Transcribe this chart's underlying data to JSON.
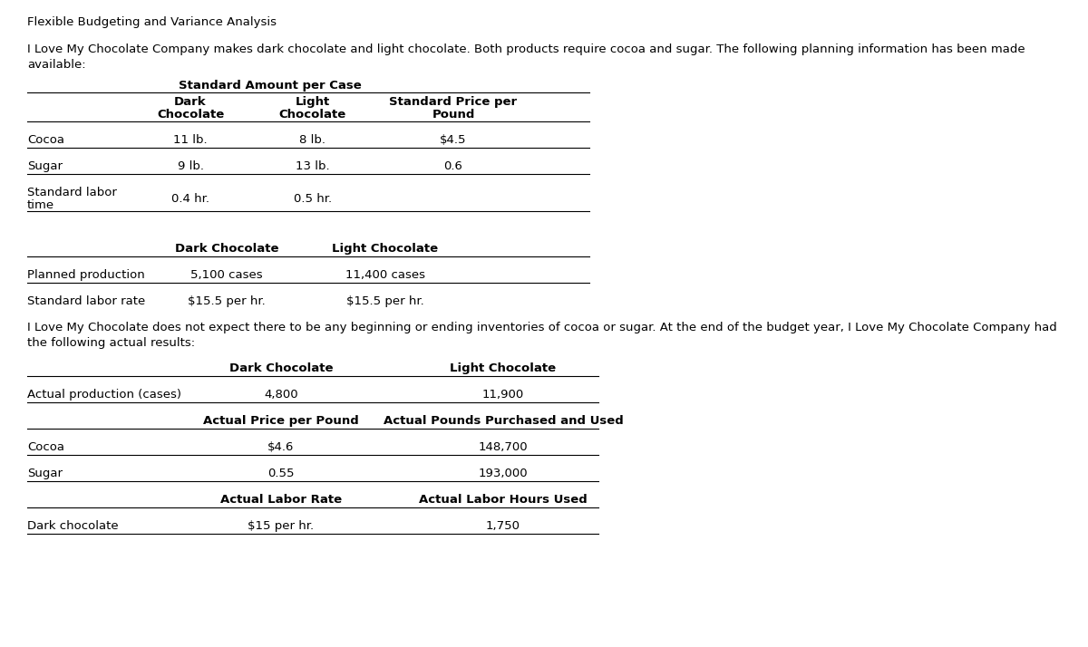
{
  "title": "Flexible Budgeting and Variance Analysis",
  "intro_line1": "I Love My Chocolate Company makes dark chocolate and light chocolate. Both products require cocoa and sugar. The following planning information has been made",
  "intro_line2": "available:",
  "table1_header": "Standard Amount per Case",
  "table2_col1": "Dark",
  "table2_col1b": "Chocolate",
  "table2_col2": "Light",
  "table2_col2b": "Chocolate",
  "table2_col3": "Standard Price per",
  "table2_col3b": "Pound",
  "row_cocoa": [
    "Cocoa",
    "11 lb.",
    "8 lb.",
    "$4.5"
  ],
  "row_sugar": [
    "Sugar",
    "9 lb.",
    "13 lb.",
    "0.6"
  ],
  "row_labor_line1": "Standard labor",
  "row_labor_line2": "time",
  "row_labor_val1": "0.4 hr.",
  "row_labor_val2": "0.5 hr.",
  "t2_hdr1": "Dark Chocolate",
  "t2_hdr2": "Light Chocolate",
  "t2_row1": [
    "Planned production",
    "5,100 cases",
    "11,400 cases"
  ],
  "t2_row2": [
    "Standard labor rate",
    "$15.5 per hr.",
    "$15.5 per hr."
  ],
  "mid_line1": "I Love My Chocolate does not expect there to be any beginning or ending inventories of cocoa or sugar. At the end of the budget year, I Love My Chocolate Company had",
  "mid_line2": "the following actual results:",
  "t3_hdr1": "Dark Chocolate",
  "t3_hdr2": "Light Chocolate",
  "t3_row1": [
    "Actual production (cases)",
    "4,800",
    "11,900"
  ],
  "t4_hdr1": "Actual Price per Pound",
  "t4_hdr2": "Actual Pounds Purchased and Used",
  "t4_row1": [
    "Cocoa",
    "$4.6",
    "148,700"
  ],
  "t4_row2": [
    "Sugar",
    "0.55",
    "193,000"
  ],
  "t5_hdr1": "Actual Labor Rate",
  "t5_hdr2": "Actual Labor Hours Used",
  "t5_row1": [
    "Dark chocolate",
    "$15 per hr.",
    "1,750"
  ],
  "bg_color": "#ffffff",
  "text_color": "#000000"
}
